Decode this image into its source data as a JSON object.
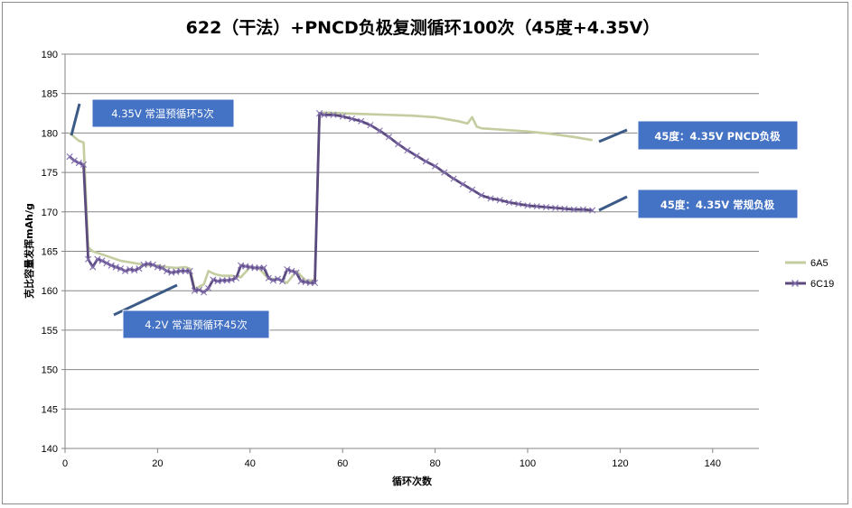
{
  "chart_data": {
    "type": "line",
    "title": "622（干法）+PNCD负极复测循环100次（45度+4.35V）",
    "xlabel": "循环次数",
    "ylabel": "克比容量发挥mAh/g",
    "xlim": [
      0,
      150
    ],
    "ylim": [
      140,
      190
    ],
    "xticks": [
      0,
      20,
      40,
      60,
      80,
      100,
      120,
      140
    ],
    "yticks": [
      140,
      145,
      150,
      155,
      160,
      165,
      170,
      175,
      180,
      185,
      190
    ],
    "grid": "horizontal",
    "legend_position": "right",
    "colors": {
      "6A5": "#c3cda0",
      "6C19": "#5b4a7e",
      "annotation_box": "#4472c4",
      "leader": "#3b5a86"
    },
    "series": [
      {
        "name": "6A5",
        "x": [
          1,
          2,
          3,
          4,
          5,
          6,
          7,
          8,
          9,
          10,
          12,
          14,
          16,
          18,
          20,
          22,
          24,
          26,
          27,
          28,
          29,
          30,
          31,
          32,
          33,
          34,
          36,
          38,
          40,
          42,
          44,
          46,
          48,
          50,
          52,
          54,
          55,
          56,
          60,
          65,
          70,
          75,
          80,
          85,
          87,
          88,
          89,
          90,
          95,
          100,
          105,
          110,
          114
        ],
        "y": [
          180,
          179.5,
          179,
          178.8,
          165.5,
          165,
          164.8,
          164.6,
          164.4,
          164.2,
          163.8,
          163.6,
          163.4,
          163.2,
          163.2,
          163,
          162.9,
          163,
          162.8,
          160.2,
          160.5,
          160.8,
          162.5,
          162.2,
          162,
          161.9,
          161.9,
          161.7,
          163,
          162.8,
          161.5,
          161.5,
          161,
          162.5,
          161.3,
          161.3,
          182.5,
          182.6,
          182.5,
          182.4,
          182.3,
          182.2,
          182,
          181.5,
          181.2,
          182,
          180.8,
          180.6,
          180.4,
          180.2,
          179.9,
          179.5,
          179.1
        ]
      },
      {
        "name": "6C19",
        "x": [
          1,
          2,
          3,
          4,
          5,
          6,
          7,
          8,
          9,
          10,
          11,
          12,
          13,
          14,
          15,
          16,
          17,
          18,
          19,
          20,
          21,
          22,
          23,
          24,
          25,
          26,
          27,
          28,
          29,
          30,
          31,
          32,
          33,
          34,
          35,
          36,
          37,
          38,
          39,
          40,
          41,
          42,
          43,
          44,
          45,
          46,
          47,
          48,
          49,
          50,
          51,
          52,
          53,
          54,
          55,
          56,
          58,
          60,
          62,
          64,
          66,
          68,
          70,
          72,
          74,
          76,
          78,
          80,
          82,
          84,
          86,
          88,
          90,
          92,
          94,
          96,
          98,
          100,
          102,
          104,
          106,
          108,
          110,
          112,
          114
        ],
        "y": [
          177,
          176.5,
          176.2,
          176,
          164,
          163,
          164,
          163.8,
          163.5,
          163.2,
          163,
          162.8,
          162.5,
          162.7,
          162.6,
          162.8,
          163.3,
          163.4,
          163.3,
          163,
          162.9,
          162.5,
          162.3,
          162.4,
          162.5,
          162.5,
          162.5,
          160,
          160.1,
          159.8,
          160.3,
          161.4,
          161.2,
          161.3,
          161.3,
          161.4,
          161.6,
          163.2,
          163.1,
          163,
          162.9,
          162.9,
          162.9,
          161.6,
          161.3,
          161.5,
          161.2,
          162.7,
          162.5,
          162.3,
          161.2,
          161.1,
          161,
          161,
          182.5,
          182.3,
          182.3,
          182.1,
          181.8,
          181.5,
          181,
          180.3,
          179.5,
          178.6,
          177.8,
          177.1,
          176.4,
          175.8,
          175,
          174.2,
          173.5,
          172.8,
          172.1,
          171.7,
          171.5,
          171.2,
          171,
          170.8,
          170.7,
          170.6,
          170.5,
          170.4,
          170.3,
          170.3,
          170.2
        ]
      }
    ],
    "annotations": [
      {
        "text": "4.35V 常温预循环5次"
      },
      {
        "text": "4.2V 常温预循环45次"
      },
      {
        "text": "45度：4.35V PNCD负极"
      },
      {
        "text": "45度：4.35V 常规负极"
      }
    ]
  }
}
